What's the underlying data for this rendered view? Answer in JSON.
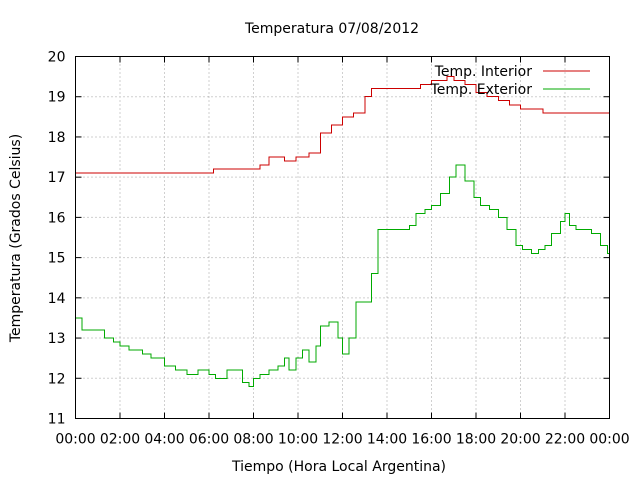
{
  "chart_data": {
    "type": "line",
    "title": "Temperatura 07/08/2012",
    "xlabel": "Tiempo (Hora Local Argentina)",
    "ylabel": "Temperatura (Grados Celsius)",
    "xlim": [
      0,
      24
    ],
    "ylim": [
      11,
      20
    ],
    "grid": true,
    "legend_position": "top-right",
    "x_tick_labels": [
      "00:00",
      "02:00",
      "04:00",
      "06:00",
      "08:00",
      "10:00",
      "12:00",
      "14:00",
      "16:00",
      "18:00",
      "20:00",
      "22:00",
      "00:00"
    ],
    "y_tick_labels": [
      "11",
      "12",
      "13",
      "14",
      "15",
      "16",
      "17",
      "18",
      "19",
      "20"
    ],
    "series": [
      {
        "name": "Temp. Interior",
        "color": "#cc0000",
        "x": [
          0,
          6,
          6.2,
          8,
          8.3,
          8.7,
          9.4,
          9.9,
          10.5,
          11.0,
          11.5,
          12.0,
          12.5,
          13.0,
          13.3,
          15.0,
          15.5,
          16.0,
          16.7,
          17.0,
          17.5,
          18.0,
          18.5,
          19.0,
          19.5,
          20.0,
          20.5,
          21.0,
          22.0,
          23.0,
          24.0
        ],
        "y": [
          17.1,
          17.1,
          17.2,
          17.2,
          17.3,
          17.5,
          17.4,
          17.5,
          17.6,
          18.1,
          18.3,
          18.5,
          18.6,
          19.0,
          19.2,
          19.2,
          19.3,
          19.4,
          19.5,
          19.4,
          19.3,
          19.1,
          19.0,
          18.9,
          18.8,
          18.7,
          18.7,
          18.6,
          18.6,
          18.6,
          18.6
        ]
      },
      {
        "name": "Temp. Exterior",
        "color": "#00aa00",
        "x": [
          0,
          0.3,
          1.0,
          1.3,
          1.7,
          2.0,
          2.4,
          3.0,
          3.4,
          4.0,
          4.5,
          5.0,
          5.5,
          6.0,
          6.3,
          6.8,
          7.2,
          7.5,
          7.8,
          8.0,
          8.3,
          8.7,
          9.1,
          9.4,
          9.6,
          9.9,
          10.2,
          10.5,
          10.8,
          11.0,
          11.4,
          11.8,
          12.0,
          12.3,
          12.6,
          13.0,
          13.3,
          13.6,
          14.0,
          14.5,
          15.0,
          15.3,
          15.7,
          16.0,
          16.4,
          16.8,
          17.1,
          17.5,
          17.9,
          18.2,
          18.6,
          19.0,
          19.4,
          19.8,
          20.1,
          20.5,
          20.8,
          21.1,
          21.4,
          21.8,
          22.0,
          22.2,
          22.5,
          22.9,
          23.2,
          23.6,
          23.9,
          24.0
        ],
        "y": [
          13.5,
          13.2,
          13.2,
          13.0,
          12.9,
          12.8,
          12.7,
          12.6,
          12.5,
          12.3,
          12.2,
          12.1,
          12.2,
          12.1,
          12.0,
          12.2,
          12.2,
          11.9,
          11.8,
          12.0,
          12.1,
          12.2,
          12.3,
          12.5,
          12.2,
          12.5,
          12.7,
          12.4,
          12.8,
          13.3,
          13.4,
          13.0,
          12.6,
          13.0,
          13.9,
          13.9,
          14.6,
          15.7,
          15.7,
          15.7,
          15.8,
          16.1,
          16.2,
          16.3,
          16.6,
          17.0,
          17.3,
          16.9,
          16.5,
          16.3,
          16.2,
          16.0,
          15.7,
          15.3,
          15.2,
          15.1,
          15.2,
          15.3,
          15.6,
          15.9,
          16.1,
          15.8,
          15.7,
          15.7,
          15.6,
          15.3,
          15.1,
          15.0
        ]
      }
    ]
  }
}
